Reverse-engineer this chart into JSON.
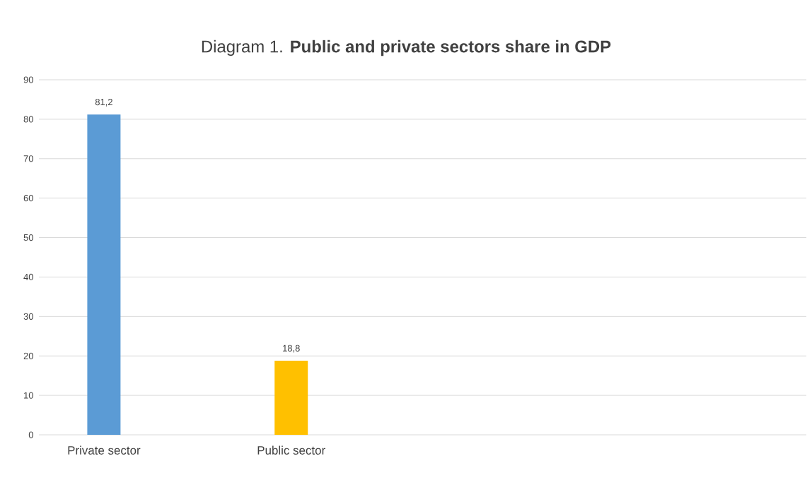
{
  "chart_data": {
    "type": "bar",
    "title": "Diagram 1. **Public and private sectors share in GDP**",
    "categories": [
      "Private sector",
      "Public sector"
    ],
    "values": [
      81.2,
      18.8
    ],
    "colors": [
      "#5b9bd5",
      "#ffc000"
    ],
    "value_labels": [
      "81,2",
      "18,8"
    ],
    "ylim": [
      0,
      90
    ],
    "yticks": [
      0,
      10,
      20,
      30,
      40,
      50,
      60,
      70,
      80,
      90
    ],
    "grid": "y"
  }
}
